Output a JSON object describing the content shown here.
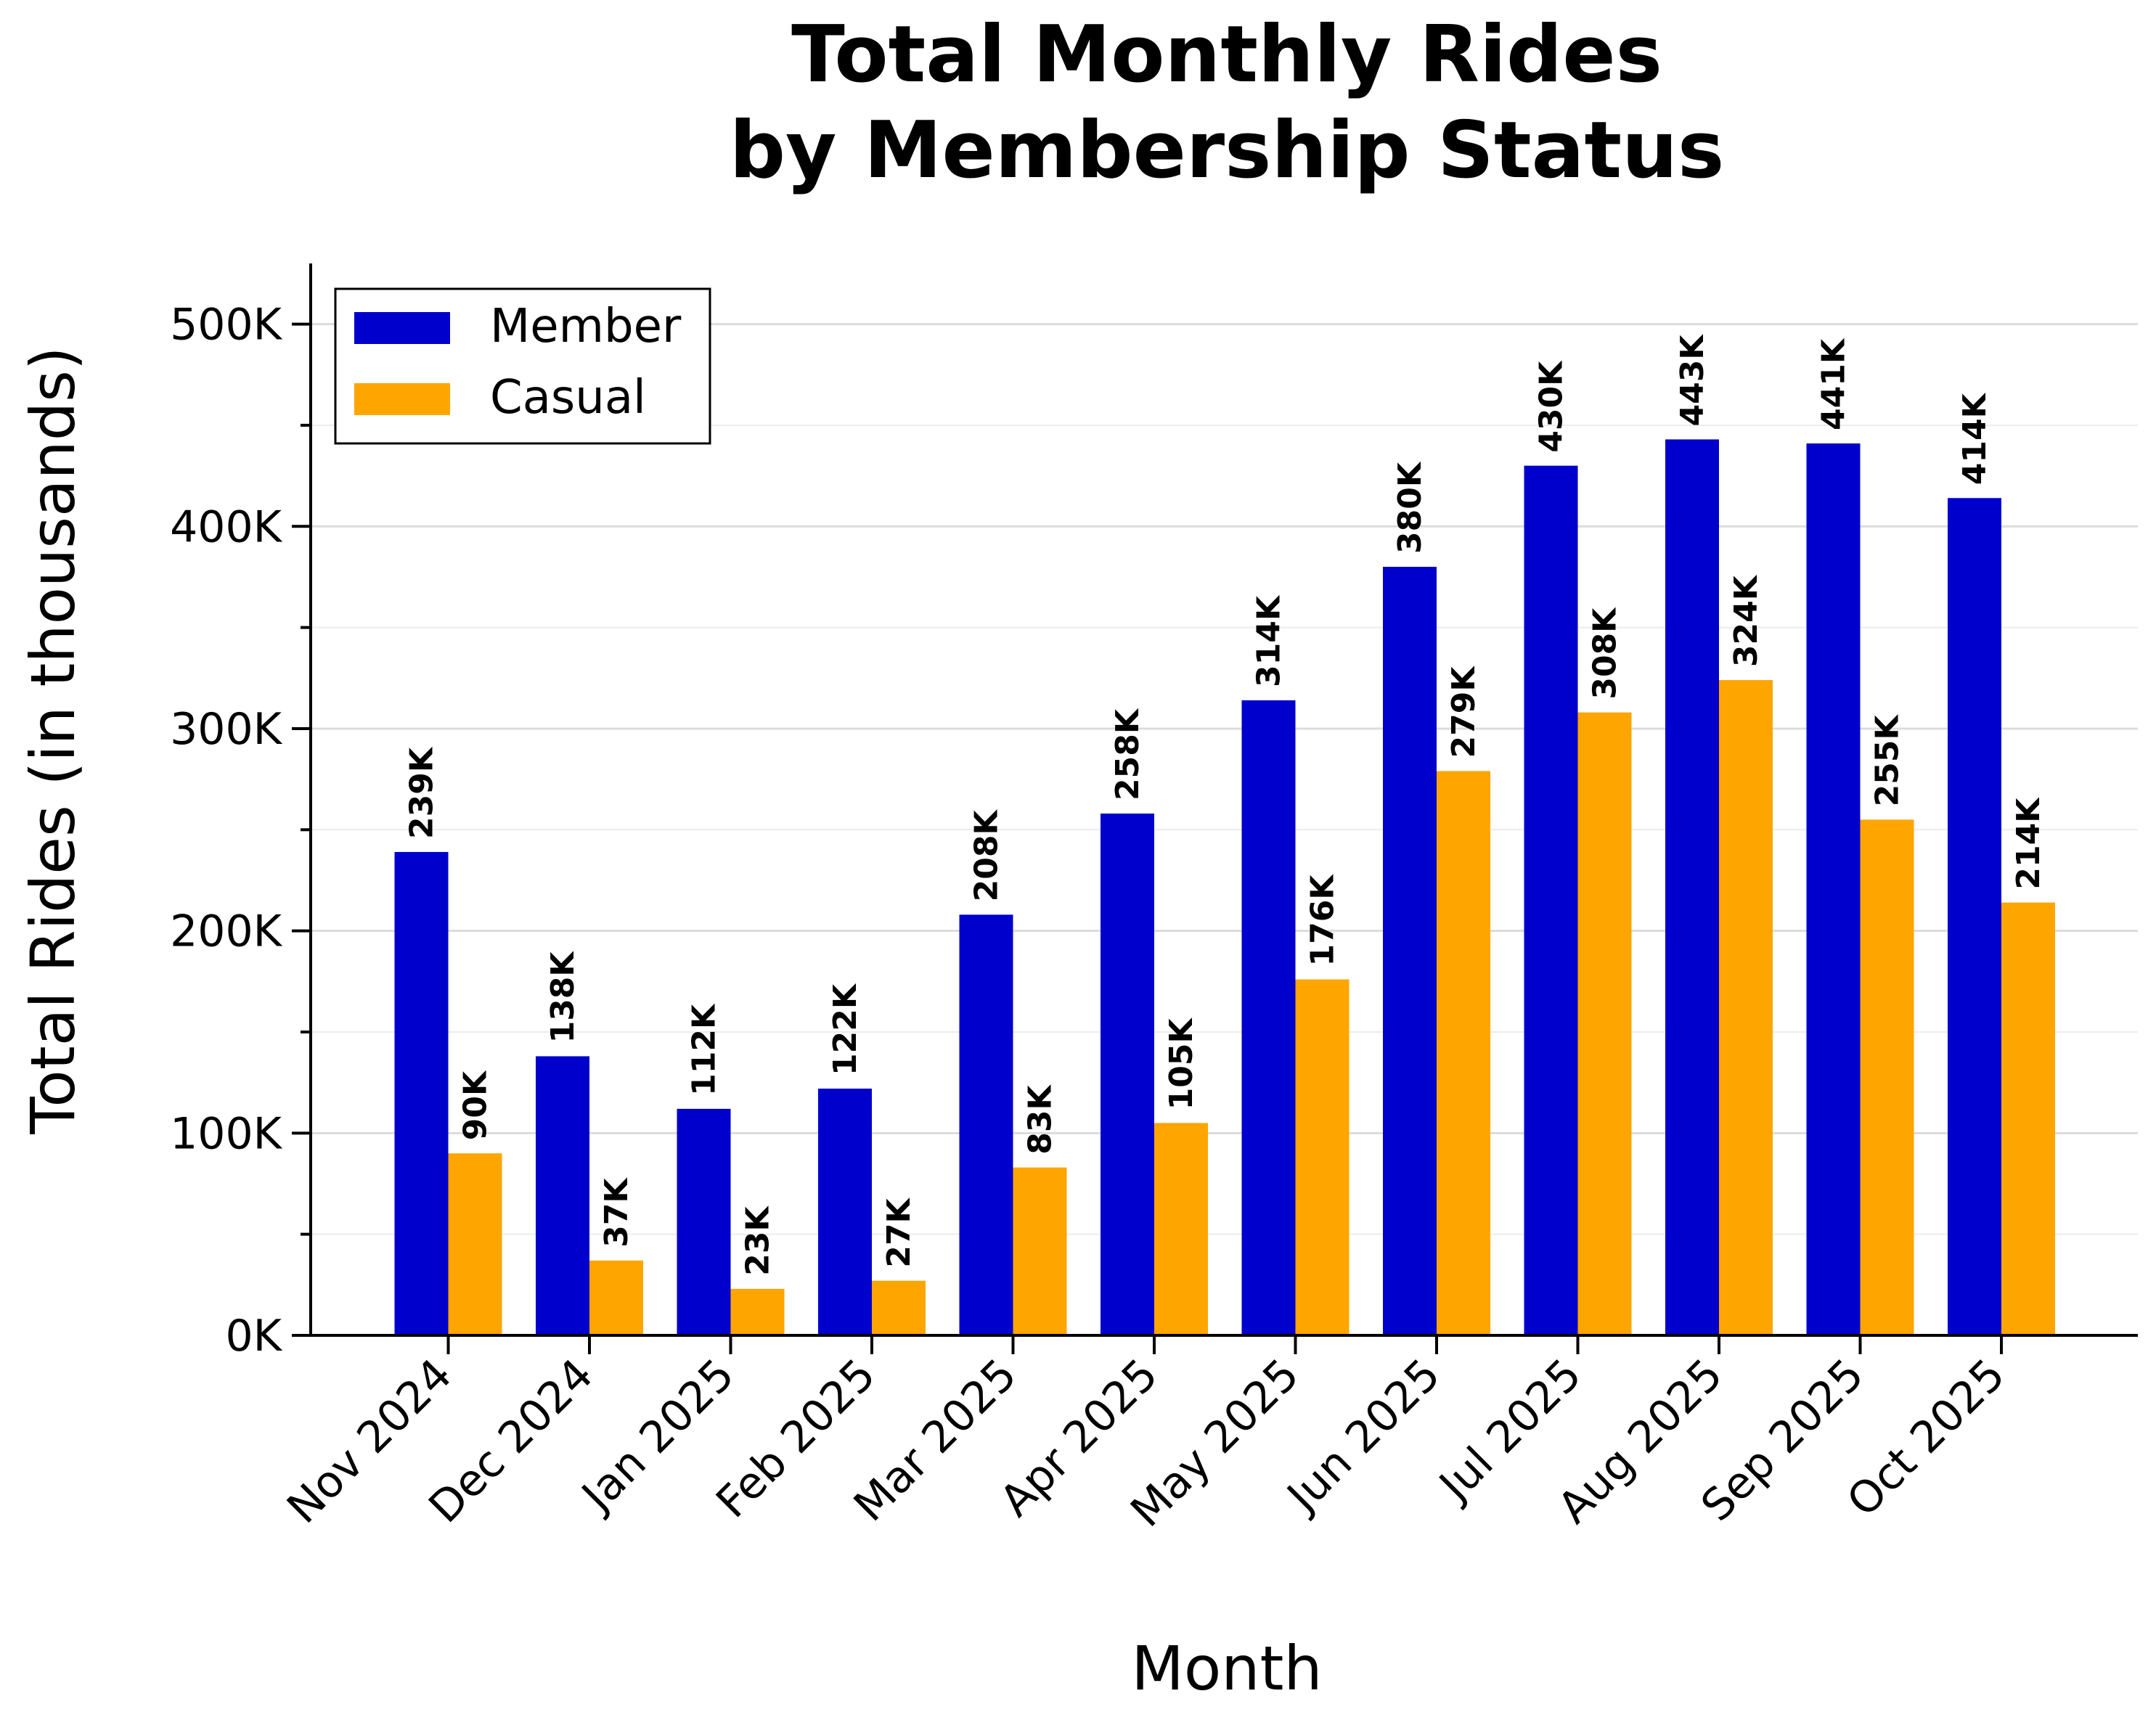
{
  "chart_data": {
    "type": "bar",
    "title": [
      "Total Monthly Rides",
      "by Membership Status"
    ],
    "xlabel": "Month",
    "ylabel": "Total Rides (in thousands)",
    "ylim": [
      0,
      530000
    ],
    "yticks": [
      0,
      100000,
      200000,
      300000,
      400000,
      500000
    ],
    "ytick_labels": [
      "0K",
      "100K",
      "200K",
      "300K",
      "400K",
      "500K"
    ],
    "minor_yticks": [
      50000,
      150000,
      250000,
      350000,
      450000
    ],
    "grid": "horizontal",
    "legend_position": "top-left",
    "categories": [
      "Nov 2024",
      "Dec 2024",
      "Jan 2025",
      "Feb 2025",
      "Mar 2025",
      "Apr 2025",
      "May 2025",
      "Jun 2025",
      "Jul 2025",
      "Aug 2025",
      "Sep 2025",
      "Oct 2025"
    ],
    "series": [
      {
        "name": "Member",
        "color": "#0000cd",
        "values": [
          239000,
          138000,
          112000,
          122000,
          208000,
          258000,
          314000,
          380000,
          430000,
          443000,
          441000,
          414000
        ],
        "labels": [
          "239K",
          "138K",
          "112K",
          "122K",
          "208K",
          "258K",
          "314K",
          "380K",
          "430K",
          "443K",
          "441K",
          "414K"
        ]
      },
      {
        "name": "Casual",
        "color": "#ffa500",
        "values": [
          90000,
          37000,
          23000,
          27000,
          83000,
          105000,
          176000,
          279000,
          308000,
          324000,
          255000,
          214000
        ],
        "labels": [
          "90K",
          "37K",
          "23K",
          "27K",
          "83K",
          "105K",
          "176K",
          "279K",
          "308K",
          "324K",
          "255K",
          "214K"
        ]
      }
    ]
  }
}
